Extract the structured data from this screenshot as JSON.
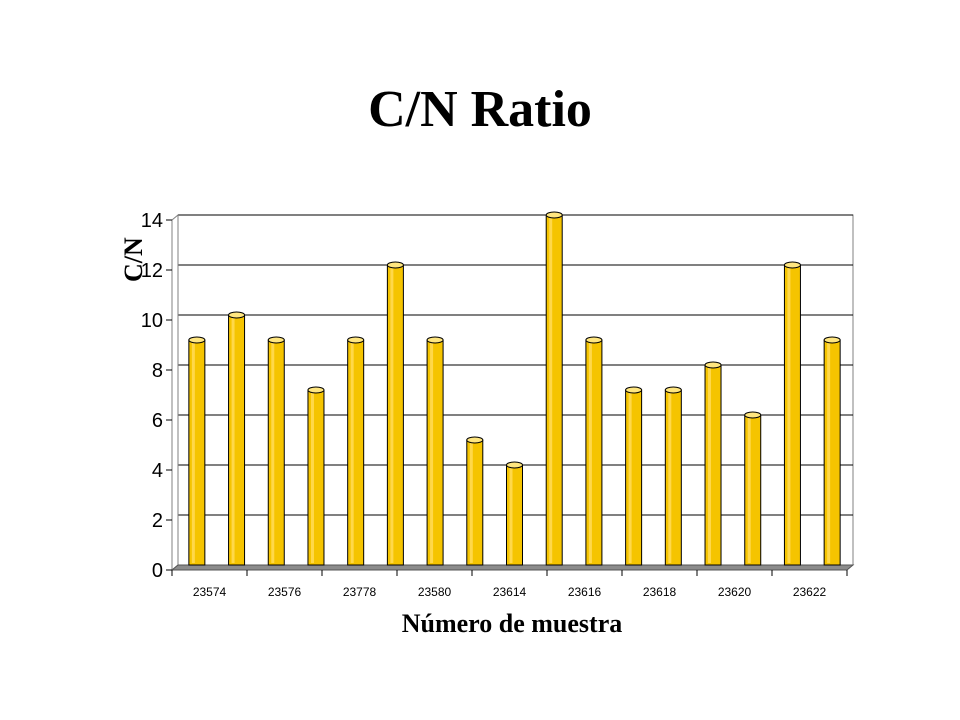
{
  "title": "C/N Ratio",
  "chart_data": {
    "type": "bar",
    "title": "C/N Ratio",
    "xlabel": "Número de muestra",
    "ylabel": "C/N",
    "ylim": [
      0,
      14
    ],
    "yticks": [
      0,
      2,
      4,
      6,
      8,
      10,
      12,
      14
    ],
    "grid": true,
    "x_tick_labels": [
      "23574",
      "23576",
      "23778",
      "23580",
      "23614",
      "23616",
      "23618",
      "23620",
      "23622"
    ],
    "values": [
      9,
      10,
      9,
      7,
      9,
      12,
      9,
      5,
      4,
      14,
      9,
      7,
      7,
      8,
      6,
      12,
      9
    ],
    "colors": {
      "bar": "#F5C400",
      "bar_top": "#FFE680",
      "bar_edge": "#000000",
      "floor": "#8C8C8C",
      "grid": "#000000"
    }
  }
}
